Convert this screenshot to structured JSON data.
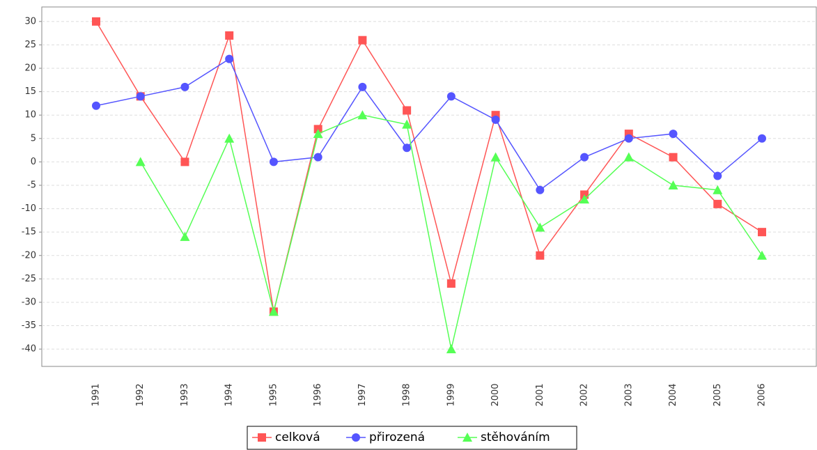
{
  "chart_data": {
    "type": "line",
    "categories": [
      "1991",
      "1992",
      "1993",
      "1994",
      "1995",
      "1996",
      "1997",
      "1998",
      "1999",
      "2000",
      "2001",
      "2002",
      "2003",
      "2004",
      "2005",
      "2006"
    ],
    "series": [
      {
        "name": "celková",
        "color": "#ff5555",
        "marker": "square",
        "values": [
          30,
          14,
          0,
          27,
          -32,
          7,
          26,
          11,
          -26,
          10,
          -20,
          -7,
          6,
          1,
          -9,
          -15
        ]
      },
      {
        "name": "přirozená",
        "color": "#5555ff",
        "marker": "circle",
        "values": [
          12,
          14,
          16,
          22,
          0,
          1,
          16,
          3,
          14,
          9,
          -6,
          1,
          5,
          6,
          -3,
          5
        ]
      },
      {
        "name": "stěhováním",
        "color": "#55ff55",
        "marker": "triangle",
        "values": [
          null,
          0,
          -16,
          5,
          -32,
          6,
          10,
          8,
          -40,
          1,
          -14,
          -8,
          1,
          -5,
          -6,
          -20
        ]
      }
    ],
    "ylim": [
      -43.7,
      33.1
    ],
    "yticks": [
      -40,
      -35,
      -30,
      -25,
      -20,
      -15,
      -10,
      -5,
      0,
      5,
      10,
      15,
      20,
      25,
      30
    ],
    "grid": true,
    "legend": "bottom"
  }
}
